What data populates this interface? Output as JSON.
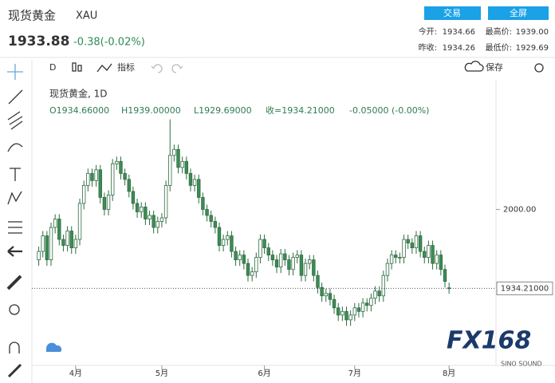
{
  "header": {
    "title": "现货黄金",
    "symbol": "XAU",
    "price": "1933.88",
    "change": "-0.38(-0.02%)",
    "buttons": [
      "交易",
      "全屏"
    ],
    "stats": [
      [
        "今开:",
        "1934.66",
        "最高价:",
        "1939.00"
      ],
      [
        "昨收:",
        "1934.26",
        "最低价:",
        "1929.69"
      ]
    ]
  },
  "toolbar": {
    "interval": "D",
    "indicators": "指标",
    "save": "保存"
  },
  "legend": {
    "name": "现货黄金, 1D",
    "open": "O1934.66000",
    "high": "H1939.00000",
    "low": "L1929.69000",
    "close": "收=1934.21000",
    "change": "-0.05000 (-0.00%)"
  },
  "last_price_label": "1934.21000",
  "watermark": {
    "brand": "FX168",
    "sub": "SINO SOUND"
  },
  "chart_data": {
    "type": "candlestick",
    "up_color": "#ffffff",
    "down_color": "#3d8c55",
    "outline": "#2f6b41",
    "xlim": [
      -0.5,
      102.5
    ],
    "ylim": [
      1870,
      2108
    ],
    "xticks": [
      {
        "value": 9,
        "label": "4月"
      },
      {
        "value": 30,
        "label": "5月"
      },
      {
        "value": 55,
        "label": "6月"
      },
      {
        "value": 77,
        "label": "7月"
      },
      {
        "value": 100,
        "label": "8月"
      }
    ],
    "yticks": [
      {
        "value": 2000,
        "label": "2000.00"
      }
    ],
    "open": [
      1958,
      1965,
      1978,
      1958,
      1985,
      1992,
      1975,
      1970,
      1982,
      1968,
      1975,
      2005,
      2020,
      2030,
      2024,
      2033,
      2010,
      2000,
      2012,
      2038,
      2040,
      2030,
      2025,
      2015,
      2005,
      1998,
      2002,
      1992,
      1995,
      1985,
      1990,
      1993,
      2020,
      2045,
      2050,
      2035,
      2040,
      2030,
      2020,
      2025,
      2010,
      2000,
      1995,
      1990,
      1985,
      1970,
      1975,
      1978,
      1965,
      1958,
      1962,
      1955,
      1945,
      1948,
      1960,
      1975,
      1968,
      1962,
      1958,
      1952,
      1963,
      1958,
      1950,
      1960,
      1962,
      1945,
      1955,
      1958,
      1945,
      1935,
      1928,
      1930,
      1925,
      1918,
      1912,
      1915,
      1908,
      1912,
      1918,
      1915,
      1922,
      1920,
      1926,
      1932,
      1928,
      1945,
      1955,
      1962,
      1960,
      1960,
      1975,
      1972,
      1968,
      1978,
      1965,
      1960,
      1970,
      1955,
      1962,
      1950,
      1934.66
    ],
    "high": [
      1969,
      1982,
      1982,
      1989,
      1996,
      1996,
      1979,
      1986,
      1986,
      1979,
      2009,
      2024,
      2034,
      2034,
      2037,
      2037,
      2014,
      2016,
      2042,
      2044,
      2044,
      2034,
      2029,
      2019,
      2009,
      2006,
      2006,
      1999,
      1999,
      1994,
      1997,
      2024,
      2075,
      2054,
      2054,
      2044,
      2044,
      2034,
      2029,
      2029,
      2014,
      2004,
      1999,
      1994,
      1989,
      1979,
      1982,
      1982,
      1969,
      1966,
      1966,
      1959,
      1952,
      1964,
      1979,
      1979,
      1972,
      1966,
      1962,
      1967,
      1967,
      1962,
      1964,
      1966,
      1966,
      1959,
      1962,
      1962,
      1949,
      1939,
      1934,
      1934,
      1929,
      1922,
      1919,
      1919,
      1916,
      1922,
      1922,
      1926,
      1926,
      1930,
      1936,
      1936,
      1949,
      1959,
      1966,
      1966,
      1964,
      1979,
      1979,
      1976,
      1982,
      1982,
      1969,
      1974,
      1974,
      1966,
      1966,
      1954,
      1939
    ],
    "low": [
      1953,
      1960,
      1953,
      1953,
      1980,
      1970,
      1965,
      1965,
      1963,
      1963,
      1970,
      2000,
      2015,
      2019,
      2019,
      2005,
      1995,
      1995,
      2007,
      2033,
      2025,
      2020,
      2010,
      2000,
      1993,
      1993,
      1987,
      1987,
      1980,
      1980,
      1985,
      1988,
      2015,
      2040,
      2030,
      2030,
      2025,
      2015,
      2015,
      2005,
      1995,
      1990,
      1985,
      1980,
      1965,
      1965,
      1970,
      1960,
      1953,
      1953,
      1950,
      1940,
      1940,
      1943,
      1955,
      1963,
      1957,
      1953,
      1947,
      1947,
      1953,
      1945,
      1945,
      1955,
      1940,
      1940,
      1950,
      1940,
      1930,
      1923,
      1923,
      1920,
      1913,
      1907,
      1907,
      1903,
      1903,
      1907,
      1910,
      1910,
      1915,
      1915,
      1921,
      1923,
      1923,
      1940,
      1950,
      1955,
      1955,
      1955,
      1967,
      1963,
      1963,
      1960,
      1955,
      1955,
      1950,
      1950,
      1945,
      1935,
      1929.69
    ],
    "close": [
      1965,
      1978,
      1958,
      1985,
      1992,
      1975,
      1970,
      1982,
      1968,
      1975,
      2005,
      2020,
      2030,
      2024,
      2033,
      2010,
      2000,
      2012,
      2038,
      2040,
      2030,
      2025,
      2015,
      2005,
      1998,
      2002,
      1992,
      1995,
      1985,
      1990,
      1993,
      2020,
      2045,
      2050,
      2035,
      2040,
      2030,
      2020,
      2025,
      2010,
      2000,
      1995,
      1990,
      1985,
      1970,
      1975,
      1978,
      1965,
      1958,
      1962,
      1955,
      1945,
      1948,
      1960,
      1975,
      1968,
      1962,
      1958,
      1952,
      1963,
      1958,
      1950,
      1960,
      1962,
      1945,
      1955,
      1958,
      1945,
      1935,
      1928,
      1930,
      1925,
      1918,
      1912,
      1915,
      1908,
      1912,
      1918,
      1915,
      1922,
      1920,
      1926,
      1932,
      1928,
      1945,
      1955,
      1962,
      1960,
      1960,
      1975,
      1972,
      1968,
      1978,
      1965,
      1960,
      1970,
      1955,
      1962,
      1950,
      1940,
      1934.21
    ]
  }
}
